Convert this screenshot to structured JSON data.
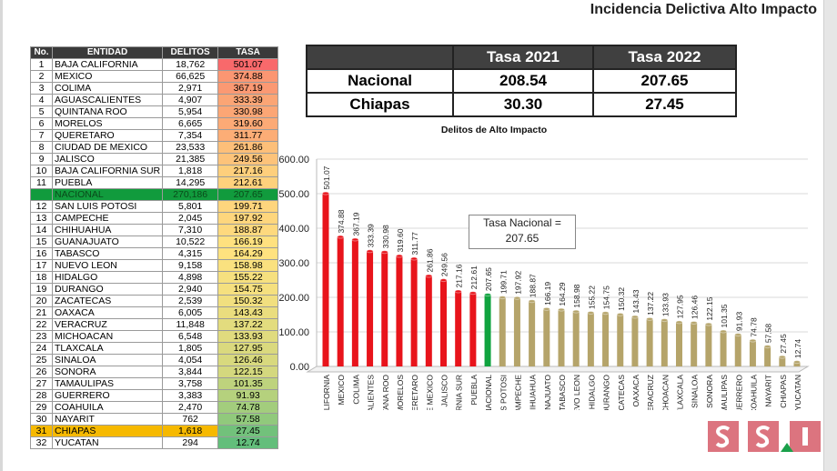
{
  "page_title": "Incidencia Delictiva Alto Impacto",
  "ranking_table": {
    "headers": [
      "No.",
      "ENTIDAD",
      "DELITOS",
      "TASA"
    ],
    "rows": [
      {
        "no": "1",
        "entidad": "BAJA CALIFORNIA",
        "delitos": "18,762",
        "tasa": "501.07"
      },
      {
        "no": "2",
        "entidad": "MEXICO",
        "delitos": "66,625",
        "tasa": "374.88"
      },
      {
        "no": "3",
        "entidad": "COLIMA",
        "delitos": "2,971",
        "tasa": "367.19"
      },
      {
        "no": "4",
        "entidad": "AGUASCALIENTES",
        "delitos": "4,907",
        "tasa": "333.39"
      },
      {
        "no": "5",
        "entidad": "QUINTANA ROO",
        "delitos": "5,954",
        "tasa": "330.98"
      },
      {
        "no": "6",
        "entidad": "MORELOS",
        "delitos": "6,665",
        "tasa": "319.60"
      },
      {
        "no": "7",
        "entidad": "QUERETARO",
        "delitos": "7,354",
        "tasa": "311.77"
      },
      {
        "no": "8",
        "entidad": "CIUDAD DE MEXICO",
        "delitos": "23,533",
        "tasa": "261.86"
      },
      {
        "no": "9",
        "entidad": "JALISCO",
        "delitos": "21,385",
        "tasa": "249.56"
      },
      {
        "no": "10",
        "entidad": "BAJA CALIFORNIA SUR",
        "delitos": "1,818",
        "tasa": "217.16"
      },
      {
        "no": "11",
        "entidad": "PUEBLA",
        "delitos": "14,295",
        "tasa": "212.61"
      },
      {
        "no": "",
        "entidad": "NACIONAL",
        "delitos": "270,186",
        "tasa": "207.65"
      },
      {
        "no": "12",
        "entidad": "SAN LUIS POTOSI",
        "delitos": "5,801",
        "tasa": "199.71"
      },
      {
        "no": "13",
        "entidad": "CAMPECHE",
        "delitos": "2,045",
        "tasa": "197.92"
      },
      {
        "no": "14",
        "entidad": "CHIHUAHUA",
        "delitos": "7,310",
        "tasa": "188.87"
      },
      {
        "no": "15",
        "entidad": "GUANAJUATO",
        "delitos": "10,522",
        "tasa": "166.19"
      },
      {
        "no": "16",
        "entidad": "TABASCO",
        "delitos": "4,315",
        "tasa": "164.29"
      },
      {
        "no": "17",
        "entidad": "NUEVO LEON",
        "delitos": "9,158",
        "tasa": "158.98"
      },
      {
        "no": "18",
        "entidad": "HIDALGO",
        "delitos": "4,898",
        "tasa": "155.22"
      },
      {
        "no": "19",
        "entidad": "DURANGO",
        "delitos": "2,940",
        "tasa": "154.75"
      },
      {
        "no": "20",
        "entidad": "ZACATECAS",
        "delitos": "2,539",
        "tasa": "150.32"
      },
      {
        "no": "21",
        "entidad": "OAXACA",
        "delitos": "6,005",
        "tasa": "143.43"
      },
      {
        "no": "22",
        "entidad": "VERACRUZ",
        "delitos": "11,848",
        "tasa": "137.22"
      },
      {
        "no": "23",
        "entidad": "MICHOACAN",
        "delitos": "6,548",
        "tasa": "133.93"
      },
      {
        "no": "24",
        "entidad": "TLAXCALA",
        "delitos": "1,805",
        "tasa": "127.95"
      },
      {
        "no": "25",
        "entidad": "SINALOA",
        "delitos": "4,054",
        "tasa": "126.46"
      },
      {
        "no": "26",
        "entidad": "SONORA",
        "delitos": "3,844",
        "tasa": "122.15"
      },
      {
        "no": "27",
        "entidad": "TAMAULIPAS",
        "delitos": "3,758",
        "tasa": "101.35"
      },
      {
        "no": "28",
        "entidad": "GUERRERO",
        "delitos": "3,383",
        "tasa": "91.93"
      },
      {
        "no": "29",
        "entidad": "COAHUILA",
        "delitos": "2,470",
        "tasa": "74.78"
      },
      {
        "no": "30",
        "entidad": "NAYARIT",
        "delitos": "762",
        "tasa": "57.58"
      },
      {
        "no": "31",
        "entidad": "CHIAPAS",
        "delitos": "1,618",
        "tasa": "27.45"
      },
      {
        "no": "32",
        "entidad": "YUCATAN",
        "delitos": "294",
        "tasa": "12.74"
      }
    ],
    "colors": {
      "high": "#f8696b",
      "mid": "#ffe27f",
      "low": "#63be7b",
      "nacional": "#119b3d",
      "chiapas_highlight": "#f6b900"
    }
  },
  "comparison_table": {
    "headers": [
      "",
      "Tasa 2021",
      "Tasa 2022"
    ],
    "rows": [
      {
        "label": "Nacional",
        "t2021": "208.54",
        "t2022": "207.65"
      },
      {
        "label": "Chiapas",
        "t2021": "30.30",
        "t2022": "27.45"
      }
    ]
  },
  "chart_data": {
    "type": "bar",
    "title": "Delitos de Alto Impacto",
    "categories": [
      "BAJA CALIFORNIA",
      "MEXICO",
      "COLIMA",
      "AGUASCALIENTES",
      "QUINTANA ROO",
      "MORELOS",
      "QUERETARO",
      "CIUDAD DE MEXICO",
      "JALISCO",
      "BAJA CALIFORNIA SUR",
      "PUEBLA",
      "NACIONAL",
      "SAN LUIS POTOSI",
      "CAMPECHE",
      "CHIHUAHUA",
      "GUANAJUATO",
      "TABASCO",
      "NUEVO LEON",
      "HIDALGO",
      "DURANGO",
      "ZACATECAS",
      "OAXACA",
      "VERACRUZ",
      "MICHOACAN",
      "TLAXCALA",
      "SINALOA",
      "SONORA",
      "TAMAULIPAS",
      "GUERRERO",
      "COAHUILA",
      "NAYARIT",
      "CHIAPAS",
      "YUCATAN"
    ],
    "values": [
      501.07,
      374.88,
      367.19,
      333.39,
      330.98,
      319.6,
      311.77,
      261.86,
      249.56,
      217.16,
      212.61,
      207.65,
      199.71,
      197.92,
      188.87,
      166.19,
      164.29,
      158.98,
      155.22,
      154.75,
      150.32,
      143.43,
      137.22,
      133.93,
      127.95,
      126.46,
      122.15,
      101.35,
      91.93,
      74.78,
      57.58,
      27.45,
      12.74
    ],
    "value_labels": [
      "501.07",
      "374.88",
      "367.19",
      "333.39",
      "330.98",
      "319.60",
      "311.77",
      "261.86",
      "249.56",
      "217.16",
      "212.61",
      "207.65",
      "199.71",
      "197.92",
      "188.87",
      "166.19",
      "164.29",
      "158.98",
      "155.22",
      "154.75",
      "150.32",
      "143.43",
      "137.22",
      "133.93",
      "127.95",
      "126.46",
      "122.15",
      "101.35",
      "91.93",
      "74.78",
      "57.58",
      "27.45",
      "12.74"
    ],
    "ylim": [
      0,
      600
    ],
    "yticks": [
      "0.00",
      "100.00",
      "200.00",
      "300.00",
      "400.00",
      "500.00",
      "600.00"
    ],
    "grid": true,
    "colors": {
      "above_national": "#e8141b",
      "national": "#10a33f",
      "below_national": "#b5a46a"
    },
    "annotation": {
      "line1": "Tasa Nacional =",
      "line2": "207.65"
    }
  },
  "logo": {
    "letters": [
      "S",
      "S",
      "I"
    ]
  }
}
